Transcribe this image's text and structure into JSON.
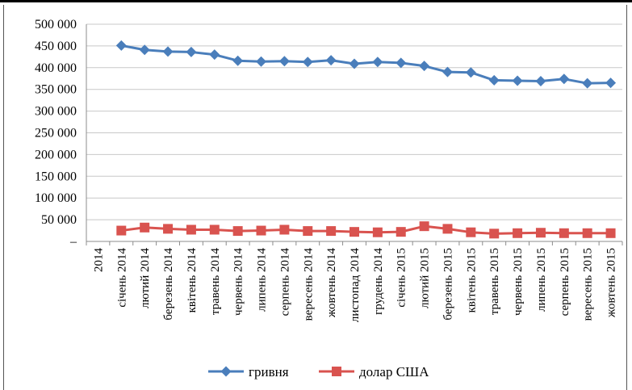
{
  "chart_data": {
    "type": "line",
    "title": "",
    "xlabel": "",
    "ylabel": "",
    "ylim": [
      0,
      500000
    ],
    "yticks": [
      "–",
      "50 000",
      "100 000",
      "150 000",
      "200 000",
      "250 000",
      "300 000",
      "350 000",
      "400 000",
      "450 000",
      "500 000"
    ],
    "grid": "horizontal",
    "legend_position": "bottom",
    "categories": [
      "2014",
      "січень 2014",
      "лютий 2014",
      "березень 2014",
      "квітень 2014",
      "травень 2014",
      "червень 2014",
      "липень 2014",
      "серпень 2014",
      "вересень 2014",
      "жовтень 2014",
      "листопад 2014",
      "грудень 2014",
      "січень 2015",
      "лютий 2015",
      "березень 2015",
      "квітень 2015",
      "травень 2015",
      "червень 2015",
      "липень 2015",
      "серпень 2015",
      "вересень 2015",
      "жовтень 2015"
    ],
    "series": [
      {
        "name": "гривня",
        "color": "#4a7ebb",
        "marker": "diamond",
        "values": [
          null,
          451000,
          441000,
          437000,
          436000,
          430000,
          416000,
          414000,
          415000,
          413000,
          417000,
          409000,
          413000,
          411000,
          404000,
          390000,
          389000,
          371000,
          370000,
          369000,
          374000,
          364000,
          365000
        ]
      },
      {
        "name": "долар США",
        "color": "#d9534f",
        "marker": "square",
        "values": [
          null,
          25000,
          32000,
          29000,
          27000,
          27000,
          24000,
          25000,
          27000,
          24000,
          24000,
          22000,
          21000,
          22000,
          35000,
          29000,
          21000,
          18000,
          19000,
          20000,
          19000,
          19000,
          19000
        ]
      }
    ]
  }
}
